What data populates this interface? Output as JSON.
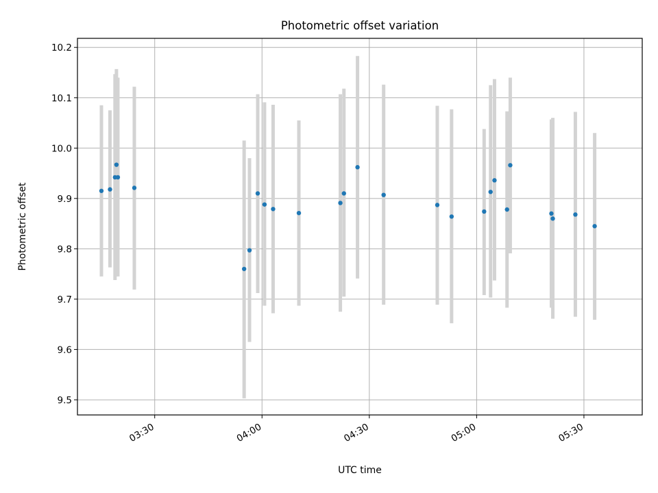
{
  "chart_data": {
    "type": "scatter",
    "title": "Photometric offset variation",
    "xlabel": "UTC time",
    "ylabel": "Photometric offset",
    "x_unit": "minutes since 00:00 UTC",
    "xlim": [
      188.4,
      346.3
    ],
    "ylim": [
      9.47,
      10.218
    ],
    "x_ticks": [
      {
        "value": 210,
        "label": "03:30"
      },
      {
        "value": 240,
        "label": "04:00"
      },
      {
        "value": 270,
        "label": "04:30"
      },
      {
        "value": 300,
        "label": "05:00"
      },
      {
        "value": 330,
        "label": "05:30"
      }
    ],
    "y_ticks": [
      {
        "value": 9.5,
        "label": "9.5"
      },
      {
        "value": 9.6,
        "label": "9.6"
      },
      {
        "value": 9.7,
        "label": "9.7"
      },
      {
        "value": 9.8,
        "label": "9.8"
      },
      {
        "value": 9.9,
        "label": "9.9"
      },
      {
        "value": 10.0,
        "label": "10.0"
      },
      {
        "value": 10.1,
        "label": "10.1"
      },
      {
        "value": 10.2,
        "label": "10.2"
      }
    ],
    "grid": true,
    "marker_color": "#1f77b4",
    "errorbar_color": "#d3d3d3",
    "points": [
      {
        "x": 195.1,
        "y": 9.915,
        "lo": 9.745,
        "hi": 10.085
      },
      {
        "x": 197.5,
        "y": 9.918,
        "lo": 9.763,
        "hi": 10.075
      },
      {
        "x": 198.9,
        "y": 9.942,
        "lo": 9.738,
        "hi": 10.147
      },
      {
        "x": 199.3,
        "y": 9.967,
        "lo": 9.76,
        "hi": 10.157
      },
      {
        "x": 199.7,
        "y": 9.942,
        "lo": 9.745,
        "hi": 10.14
      },
      {
        "x": 204.3,
        "y": 9.921,
        "lo": 9.719,
        "hi": 10.122
      },
      {
        "x": 235.0,
        "y": 9.76,
        "lo": 9.503,
        "hi": 10.015
      },
      {
        "x": 236.5,
        "y": 9.797,
        "lo": 9.615,
        "hi": 9.98
      },
      {
        "x": 238.8,
        "y": 9.91,
        "lo": 9.712,
        "hi": 10.107
      },
      {
        "x": 240.7,
        "y": 9.888,
        "lo": 9.687,
        "hi": 10.091
      },
      {
        "x": 243.1,
        "y": 9.879,
        "lo": 9.672,
        "hi": 10.086
      },
      {
        "x": 250.3,
        "y": 9.871,
        "lo": 9.687,
        "hi": 10.055
      },
      {
        "x": 261.9,
        "y": 9.891,
        "lo": 9.675,
        "hi": 10.107
      },
      {
        "x": 262.9,
        "y": 9.91,
        "lo": 9.705,
        "hi": 10.118
      },
      {
        "x": 266.7,
        "y": 9.962,
        "lo": 9.741,
        "hi": 10.183
      },
      {
        "x": 274.0,
        "y": 9.907,
        "lo": 9.689,
        "hi": 10.126
      },
      {
        "x": 289.0,
        "y": 9.887,
        "lo": 9.689,
        "hi": 10.084
      },
      {
        "x": 293.0,
        "y": 9.864,
        "lo": 9.652,
        "hi": 10.077
      },
      {
        "x": 302.1,
        "y": 9.874,
        "lo": 9.708,
        "hi": 10.038
      },
      {
        "x": 303.9,
        "y": 9.913,
        "lo": 9.703,
        "hi": 10.125
      },
      {
        "x": 305.0,
        "y": 9.936,
        "lo": 9.737,
        "hi": 10.137
      },
      {
        "x": 308.5,
        "y": 9.878,
        "lo": 9.683,
        "hi": 10.073
      },
      {
        "x": 309.4,
        "y": 9.966,
        "lo": 9.791,
        "hi": 10.14
      },
      {
        "x": 320.9,
        "y": 9.87,
        "lo": 9.683,
        "hi": 10.057
      },
      {
        "x": 321.3,
        "y": 9.86,
        "lo": 9.661,
        "hi": 10.06
      },
      {
        "x": 327.6,
        "y": 9.868,
        "lo": 9.665,
        "hi": 10.072
      },
      {
        "x": 333.0,
        "y": 9.845,
        "lo": 9.659,
        "hi": 10.03
      }
    ]
  }
}
